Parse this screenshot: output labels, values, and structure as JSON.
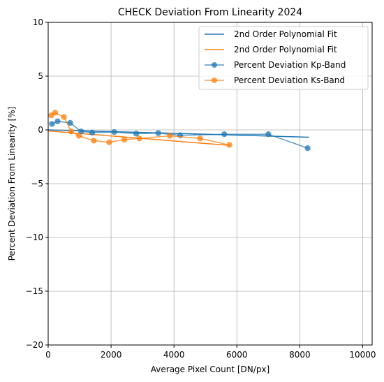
{
  "chart_data": {
    "type": "line",
    "title": "CHECK Deviation From Linearity 2024",
    "xlabel": "Average Pixel Count [DN/px]",
    "ylabel": "Percent Deviation From Linearity [%]",
    "xlim": [
      0,
      10300
    ],
    "ylim": [
      -20,
      10
    ],
    "xticks": [
      0,
      2000,
      4000,
      6000,
      8000,
      10000
    ],
    "yticks": [
      -20,
      -15,
      -10,
      -5,
      0,
      5,
      10
    ],
    "grid": true,
    "legend_position": "top-right",
    "colors": {
      "kp": "#1f77b4",
      "ks": "#ff7f0e"
    },
    "series": [
      {
        "name": "2nd Order Polynomial Fit",
        "kind": "fit",
        "color_key": "kp",
        "x": [
          0,
          2000,
          4000,
          6000,
          8300
        ],
        "y": [
          0.0,
          -0.16,
          -0.32,
          -0.49,
          -0.68
        ]
      },
      {
        "name": "2nd Order Polynomial Fit",
        "kind": "fit",
        "color_key": "ks",
        "x": [
          0,
          1500,
          3000,
          4500,
          5800
        ],
        "y": [
          -0.1,
          -0.45,
          -0.8,
          -1.15,
          -1.45
        ]
      },
      {
        "name": "Percent Deviation Kp-Band",
        "kind": "data",
        "color_key": "kp",
        "x": [
          120,
          300,
          700,
          1050,
          1400,
          2100,
          2800,
          3500,
          4200,
          5600,
          7000,
          8250
        ],
        "y": [
          0.55,
          0.8,
          0.65,
          -0.15,
          -0.25,
          -0.2,
          -0.35,
          -0.3,
          -0.5,
          -0.4,
          -0.4,
          -1.7
        ]
      },
      {
        "name": "Percent Deviation Ks-Band",
        "kind": "data",
        "color_key": "ks",
        "x": [
          100,
          220,
          500,
          730,
          980,
          1450,
          1940,
          2420,
          2900,
          3870,
          4830,
          5760
        ],
        "y": [
          1.35,
          1.6,
          1.2,
          -0.15,
          -0.55,
          -1.0,
          -1.15,
          -0.9,
          -0.8,
          -0.55,
          -0.8,
          -1.4
        ]
      }
    ]
  }
}
